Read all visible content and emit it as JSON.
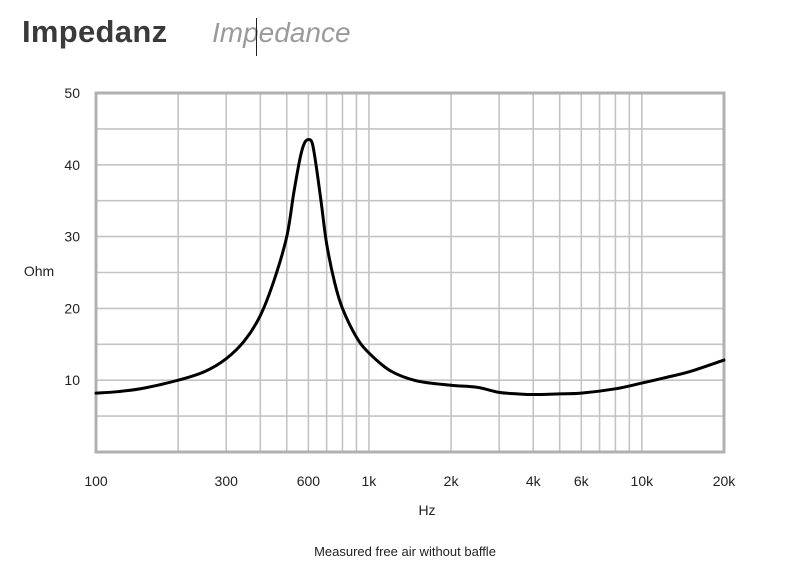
{
  "header": {
    "title": "Impedanz",
    "subtitle": "Impedance"
  },
  "colors": {
    "grid": "#c4c4c4",
    "frame": "#b0b0b0",
    "curve": "#000000",
    "title": "#3a3a3a",
    "subtitle": "#9a9a9a"
  },
  "chart_data": {
    "type": "line",
    "title": "Impedanz",
    "subtitle": "Impedance",
    "xlabel": "Hz",
    "ylabel": "Ohm",
    "x_scale": "log",
    "xlim": [
      100,
      20000
    ],
    "ylim": [
      0,
      50
    ],
    "grid": true,
    "x_ticks": [
      {
        "value": 100,
        "label": "100"
      },
      {
        "value": 300,
        "label": "300"
      },
      {
        "value": 600,
        "label": "600"
      },
      {
        "value": 1000,
        "label": "1k"
      },
      {
        "value": 2000,
        "label": "2k"
      },
      {
        "value": 4000,
        "label": "4k"
      },
      {
        "value": 6000,
        "label": "6k"
      },
      {
        "value": 10000,
        "label": "10k"
      },
      {
        "value": 20000,
        "label": "20k"
      }
    ],
    "y_ticks": [
      {
        "value": 10,
        "label": "10"
      },
      {
        "value": 20,
        "label": "20"
      },
      {
        "value": 30,
        "label": "30"
      },
      {
        "value": 40,
        "label": "40"
      },
      {
        "value": 50,
        "label": "50"
      }
    ],
    "x_gridlines": [
      200,
      300,
      400,
      500,
      600,
      700,
      800,
      900,
      1000,
      2000,
      3000,
      4000,
      5000,
      6000,
      7000,
      8000,
      9000,
      10000
    ],
    "y_gridlines": [
      5,
      10,
      15,
      20,
      25,
      30,
      35,
      40,
      45
    ],
    "caption": "Measured free air without baffle",
    "series": [
      {
        "x": [
          100,
          120,
          150,
          200,
          250,
          300,
          350,
          400,
          450,
          500,
          530,
          560,
          580,
          600,
          620,
          640,
          670,
          700,
          750,
          800,
          900,
          1000,
          1200,
          1500,
          2000,
          2500,
          3000,
          3500,
          4000,
          5000,
          6000,
          8000,
          10000,
          12000,
          15000,
          20000
        ],
        "y": [
          8.2,
          8.4,
          8.9,
          10.0,
          11.2,
          13.0,
          15.5,
          19.0,
          24.0,
          30.0,
          36.0,
          41.0,
          43.0,
          43.5,
          43.0,
          40.0,
          34.5,
          29.0,
          23.5,
          20.0,
          16.0,
          13.8,
          11.3,
          9.9,
          9.3,
          9.0,
          8.3,
          8.1,
          8.0,
          8.1,
          8.2,
          8.8,
          9.6,
          10.3,
          11.2,
          12.8
        ]
      }
    ]
  }
}
